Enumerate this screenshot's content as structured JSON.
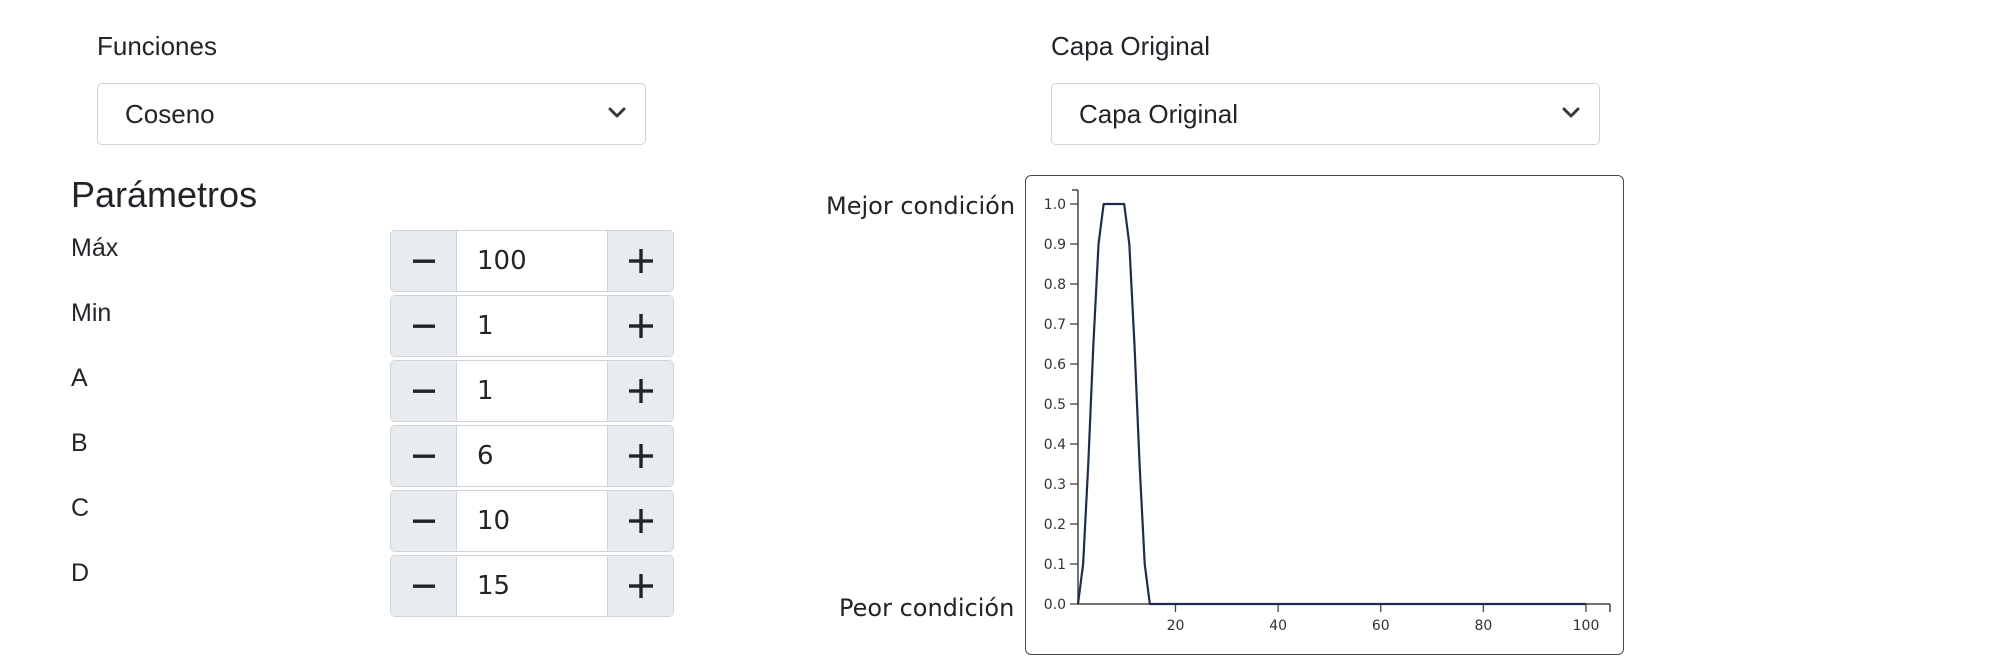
{
  "functions": {
    "label": "Funciones",
    "selected": "Coseno"
  },
  "layer": {
    "label": "Capa Original",
    "selected": "Capa Original"
  },
  "parameters": {
    "title": "Parámetros",
    "items": [
      {
        "label": "Máx",
        "value": "100"
      },
      {
        "label": "Min",
        "value": "1"
      },
      {
        "label": "A",
        "value": "1"
      },
      {
        "label": "B",
        "value": "6"
      },
      {
        "label": "C",
        "value": "10"
      },
      {
        "label": "D",
        "value": "15"
      }
    ]
  },
  "chart": {
    "best_label": "Mejor condición",
    "worst_label": "Peor condición"
  },
  "icons": {
    "decrement": "minus-icon",
    "increment": "plus-icon",
    "dropdown": "chevron-down-icon"
  },
  "colors": {
    "line": "#1f2d4d",
    "border": "#ced4da",
    "button_bg": "#e9ecef"
  },
  "chart_data": {
    "type": "line",
    "xlim": [
      1,
      100
    ],
    "ylim": [
      0,
      1
    ],
    "xticks": [
      20,
      40,
      60,
      80,
      100
    ],
    "yticks": [
      0.0,
      0.1,
      0.2,
      0.3,
      0.4,
      0.5,
      0.6,
      0.7,
      0.8,
      0.9,
      1.0
    ],
    "series": [
      {
        "x": [
          1,
          2,
          3,
          4,
          5,
          6,
          10,
          11,
          12,
          13,
          14,
          15,
          20,
          40,
          60,
          80,
          100
        ],
        "y": [
          0.0,
          0.1,
          0.35,
          0.65,
          0.9,
          1.0,
          1.0,
          0.9,
          0.65,
          0.35,
          0.1,
          0.0,
          0.0,
          0.0,
          0.0,
          0.0,
          0.0
        ]
      }
    ]
  }
}
